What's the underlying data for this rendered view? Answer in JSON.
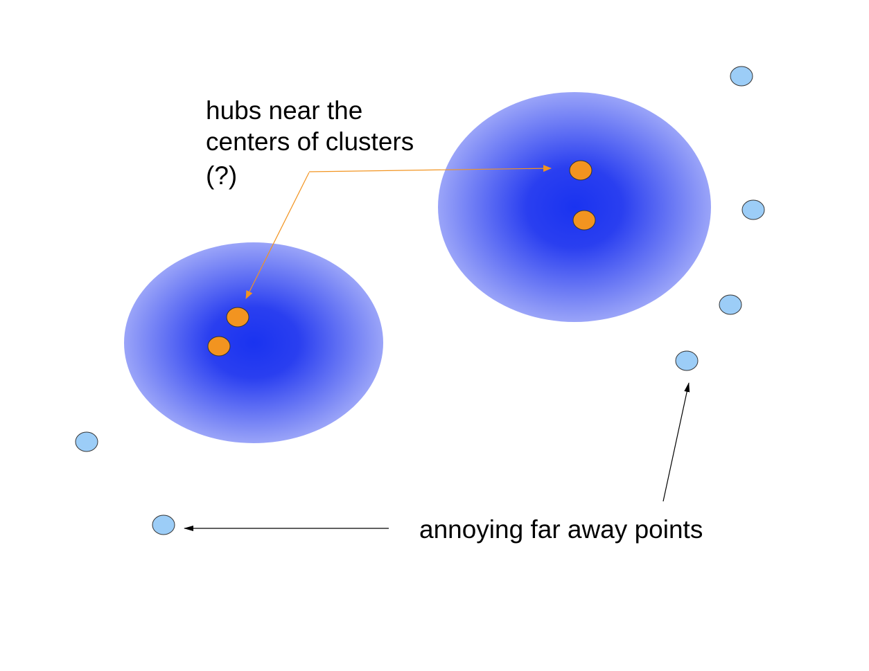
{
  "annotations": {
    "hubs_label": [
      "hubs near the",
      "centers of clusters",
      "(?)"
    ],
    "outliers_label": "annoying far away points"
  },
  "colors": {
    "cluster_center": "#1a33f0",
    "cluster_edge": "#9aa4f8",
    "hub_fill": "#f29420",
    "outlier_fill": "#9ccdf7",
    "hub_arrow": "#f29420",
    "outlier_arrow": "#000000"
  },
  "counts": {
    "clusters": 2,
    "hub_points": 4,
    "outlier_points": 6
  }
}
